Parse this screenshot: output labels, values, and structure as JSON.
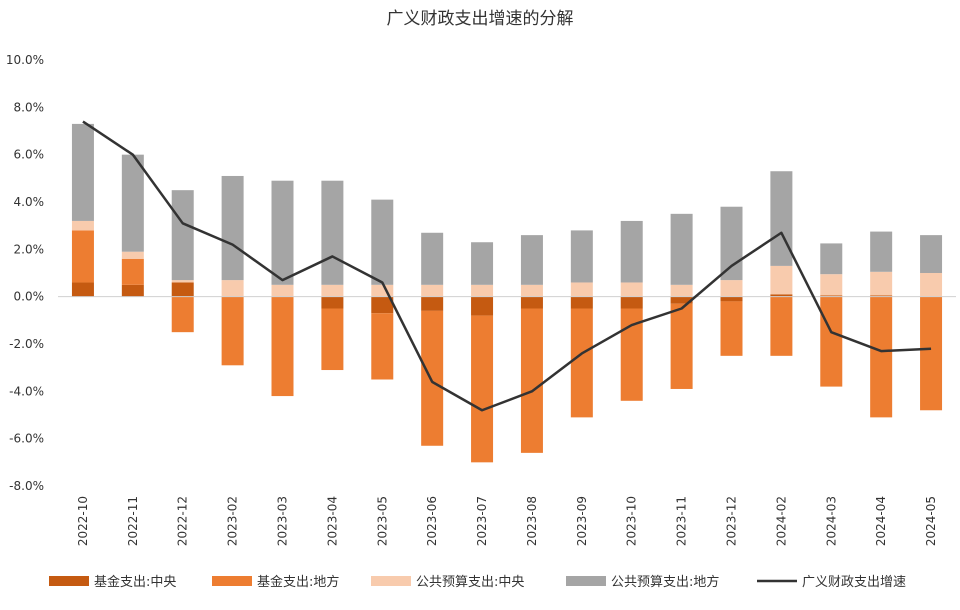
{
  "chart_data": {
    "type": "bar",
    "stacked": true,
    "title": "广义财政支出增速的分解",
    "xlabel": "",
    "ylabel": "",
    "ylim": [
      -8.0,
      10.0
    ],
    "yticks": [
      "10.0%",
      "8.0%",
      "6.0%",
      "4.0%",
      "2.0%",
      "0.0%",
      "-2.0%",
      "-4.0%",
      "-6.0%",
      "-8.0%"
    ],
    "ytick_values": [
      10,
      8,
      6,
      4,
      2,
      0,
      -2,
      -4,
      -6,
      -8
    ],
    "categories": [
      "2022-10",
      "2022-11",
      "2022-12",
      "2023-02",
      "2023-03",
      "2023-04",
      "2023-05",
      "2023-06",
      "2023-07",
      "2023-08",
      "2023-09",
      "2023-10",
      "2023-11",
      "2023-12",
      "2024-02",
      "2024-03",
      "2024-04",
      "2024-05"
    ],
    "series": [
      {
        "name": "基金支出:中央",
        "kind": "bar",
        "color": "#C55A11",
        "values": [
          0.6,
          0.5,
          0.6,
          0.0,
          0.0,
          -0.5,
          -0.7,
          -0.6,
          -0.8,
          -0.5,
          -0.5,
          -0.5,
          -0.3,
          -0.2,
          0.1,
          0.05,
          0.05,
          0.0
        ]
      },
      {
        "name": "基金支出:地方",
        "kind": "bar",
        "color": "#ED7D31",
        "values": [
          2.2,
          1.1,
          -1.5,
          -2.9,
          -4.2,
          -2.6,
          -2.8,
          -5.7,
          -6.2,
          -6.1,
          -4.6,
          -3.9,
          -3.6,
          -2.3,
          -2.5,
          -3.8,
          -5.1,
          -4.8
        ]
      },
      {
        "name": "公共预算支出:中央",
        "kind": "bar",
        "color": "#F8CBAD",
        "values": [
          0.4,
          0.3,
          0.1,
          0.7,
          0.5,
          0.5,
          0.5,
          0.5,
          0.5,
          0.5,
          0.6,
          0.6,
          0.5,
          0.7,
          1.2,
          0.9,
          1.0,
          1.0
        ]
      },
      {
        "name": "公共预算支出:地方",
        "kind": "bar",
        "color": "#A5A5A5",
        "values": [
          4.1,
          4.1,
          3.8,
          4.4,
          4.4,
          4.4,
          3.6,
          2.2,
          1.8,
          2.1,
          2.2,
          2.6,
          3.0,
          3.1,
          4.0,
          1.3,
          1.7,
          1.6
        ]
      },
      {
        "name": "广义财政支出增速",
        "kind": "line",
        "color": "#333333",
        "values": [
          7.4,
          6.0,
          3.1,
          2.2,
          0.7,
          1.7,
          0.6,
          -3.6,
          -4.8,
          -4.0,
          -2.4,
          -1.2,
          -0.5,
          1.3,
          2.7,
          -1.5,
          -2.3,
          -2.2
        ]
      }
    ],
    "legend_position": "bottom",
    "grid": false
  }
}
